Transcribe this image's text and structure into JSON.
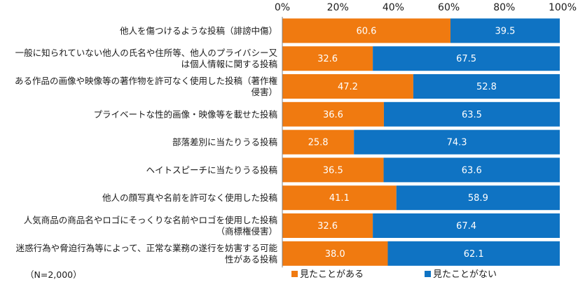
{
  "chart_data": {
    "type": "bar",
    "orientation": "horizontal",
    "stacked": "percent",
    "categories": [
      [
        "他人を傷つけるような投稿（誹謗中傷）"
      ],
      [
        "一般に知られていない他人の氏名や住所等、他人のプライバシー又",
        "は個人情報に関する投稿"
      ],
      [
        "ある作品の画像や映像等の著作物を許可なく使用した投稿（著作権",
        "侵害）"
      ],
      [
        "プライベートな性的画像・映像等を載せた投稿"
      ],
      [
        "部落差別に当たりうる投稿"
      ],
      [
        "ヘイトスピーチに当たりうる投稿"
      ],
      [
        "他人の顔写真や名前を許可なく使用した投稿"
      ],
      [
        "人気商品の商品名やロゴにそっくりな名前やロゴを使用した投稿",
        "（商標権侵害）"
      ],
      [
        "迷惑行為や脅迫行為等によって、正常な業務の遂行を妨害する可能",
        "性がある投稿"
      ]
    ],
    "series": [
      {
        "name": "見たことがある",
        "color": "#f07a10",
        "values": [
          60.6,
          32.6,
          47.2,
          36.6,
          25.8,
          36.5,
          41.1,
          32.6,
          38.0
        ],
        "labels": [
          "60.6",
          "32.6",
          "47.2",
          "36.6",
          "25.8",
          "36.5",
          "41.1",
          "32.6",
          "38.0"
        ]
      },
      {
        "name": "見たことがない",
        "color": "#0f73c3",
        "values": [
          39.5,
          67.5,
          52.8,
          63.5,
          74.3,
          63.6,
          58.9,
          67.4,
          62.1
        ],
        "labels": [
          "39.5",
          "67.5",
          "52.8",
          "63.5",
          "74.3",
          "63.6",
          "58.9",
          "67.4",
          "62.1"
        ]
      }
    ],
    "xlim": [
      0,
      100
    ],
    "ticks": [
      "0%",
      "20%",
      "40%",
      "60%",
      "80%",
      "100%"
    ],
    "legend_position": "bottom",
    "note": "（N=2,000）"
  }
}
